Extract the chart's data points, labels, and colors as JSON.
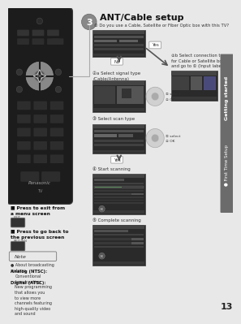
{
  "page_bg": "#e8e8e8",
  "page_number": "13",
  "title": "ANT/Cable setup",
  "subtitle": "① Do you use a Cable, Satellite or Fiber Optic box with this TV?",
  "right_tab_top": "Getting started",
  "right_tab_bottom": "● First Time Setup",
  "right_tab_bg": "#6b6b6b",
  "right_tab_text_color": "#ffffff",
  "step_circle_bg": "#888888",
  "step_number": "3",
  "press_exit_text": "■ Press to exit from\na menu screen",
  "press_back_text": "■ Press to go back to\nthe previous screen",
  "exit_label": "EXIT",
  "return_label": "RETURN",
  "step2a_text": "②a Select signal type\n(Cable/Antenna)",
  "step2b_text": "②b Select connection type\nfor Cable or Satellite box\nand go to ① (Input labels)",
  "step3_text": "③ Select scan type",
  "step4_text": "④ Start scanning",
  "step5_text": "⑤ Complete scanning",
  "no_label": "No",
  "yes_label1": "Yes",
  "yes_label2": "Yes",
  "select_label": "① select",
  "ok_label": "② OK",
  "note_label": "Note",
  "note_bullet": "● About broadcasting\nsystems",
  "analog_bold": "Analog (NTSC):",
  "analog_text": "Conventional\nbroadcasting",
  "digital_bold": "Digital (ATSC):",
  "digital_text": "New programming\nthat allows you\nto view more\nchannels featuring\nhigh-quality video\nand sound",
  "remote_body_color": "#1c1c1c",
  "remote_edge_color": "#3a3a3a",
  "screen_dark": "#2a2a2a",
  "screen_mid": "#3d3d3d",
  "screen_light": "#555555",
  "screen_border": "#555555"
}
